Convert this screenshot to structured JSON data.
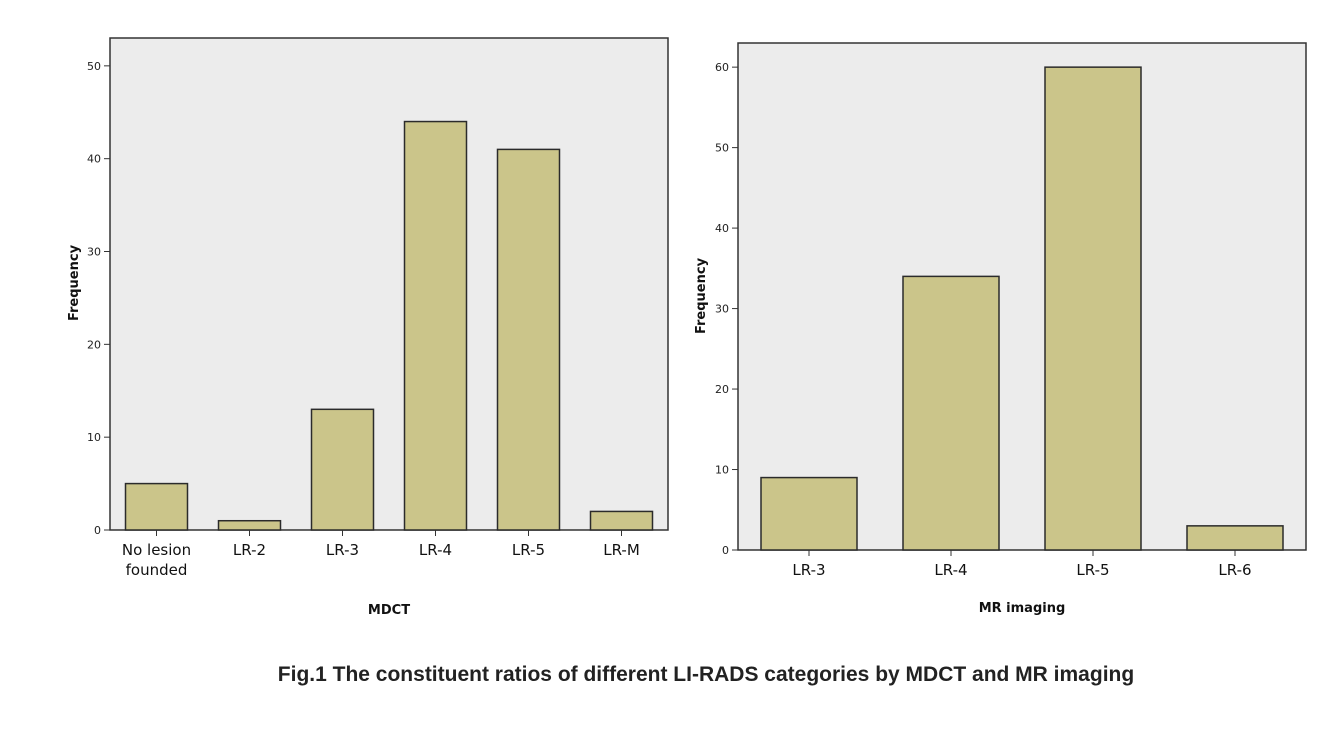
{
  "colors": {
    "bar": "#cbc58a",
    "bar_edge": "#2b2b2b",
    "plot_bg": "#ececec",
    "axis": "#333333"
  },
  "caption": "Fig.1 The constituent ratios of different LI-RADS categories by MDCT and MR imaging",
  "chart_data": [
    {
      "type": "bar",
      "title": "",
      "xlabel": "MDCT",
      "ylabel": "Frequency",
      "categories": [
        [
          "No lesion",
          "founded"
        ],
        [
          "LR-2"
        ],
        [
          "LR-3"
        ],
        [
          "LR-4"
        ],
        [
          "LR-5"
        ],
        [
          "LR-M"
        ]
      ],
      "values": [
        5,
        1,
        13,
        44,
        41,
        2
      ],
      "ylim": [
        0,
        53
      ],
      "yticks": [
        0,
        10,
        20,
        30,
        40,
        50
      ],
      "grid": false,
      "legend": "none"
    },
    {
      "type": "bar",
      "title": "",
      "xlabel": "MR imaging",
      "ylabel": "Frequency",
      "categories": [
        [
          "LR-3"
        ],
        [
          "LR-4"
        ],
        [
          "LR-5"
        ],
        [
          "LR-6"
        ]
      ],
      "values": [
        9,
        34,
        60,
        3
      ],
      "ylim": [
        0,
        63
      ],
      "yticks": [
        0,
        10,
        20,
        30,
        40,
        50,
        60
      ],
      "grid": false,
      "legend": "none"
    }
  ]
}
